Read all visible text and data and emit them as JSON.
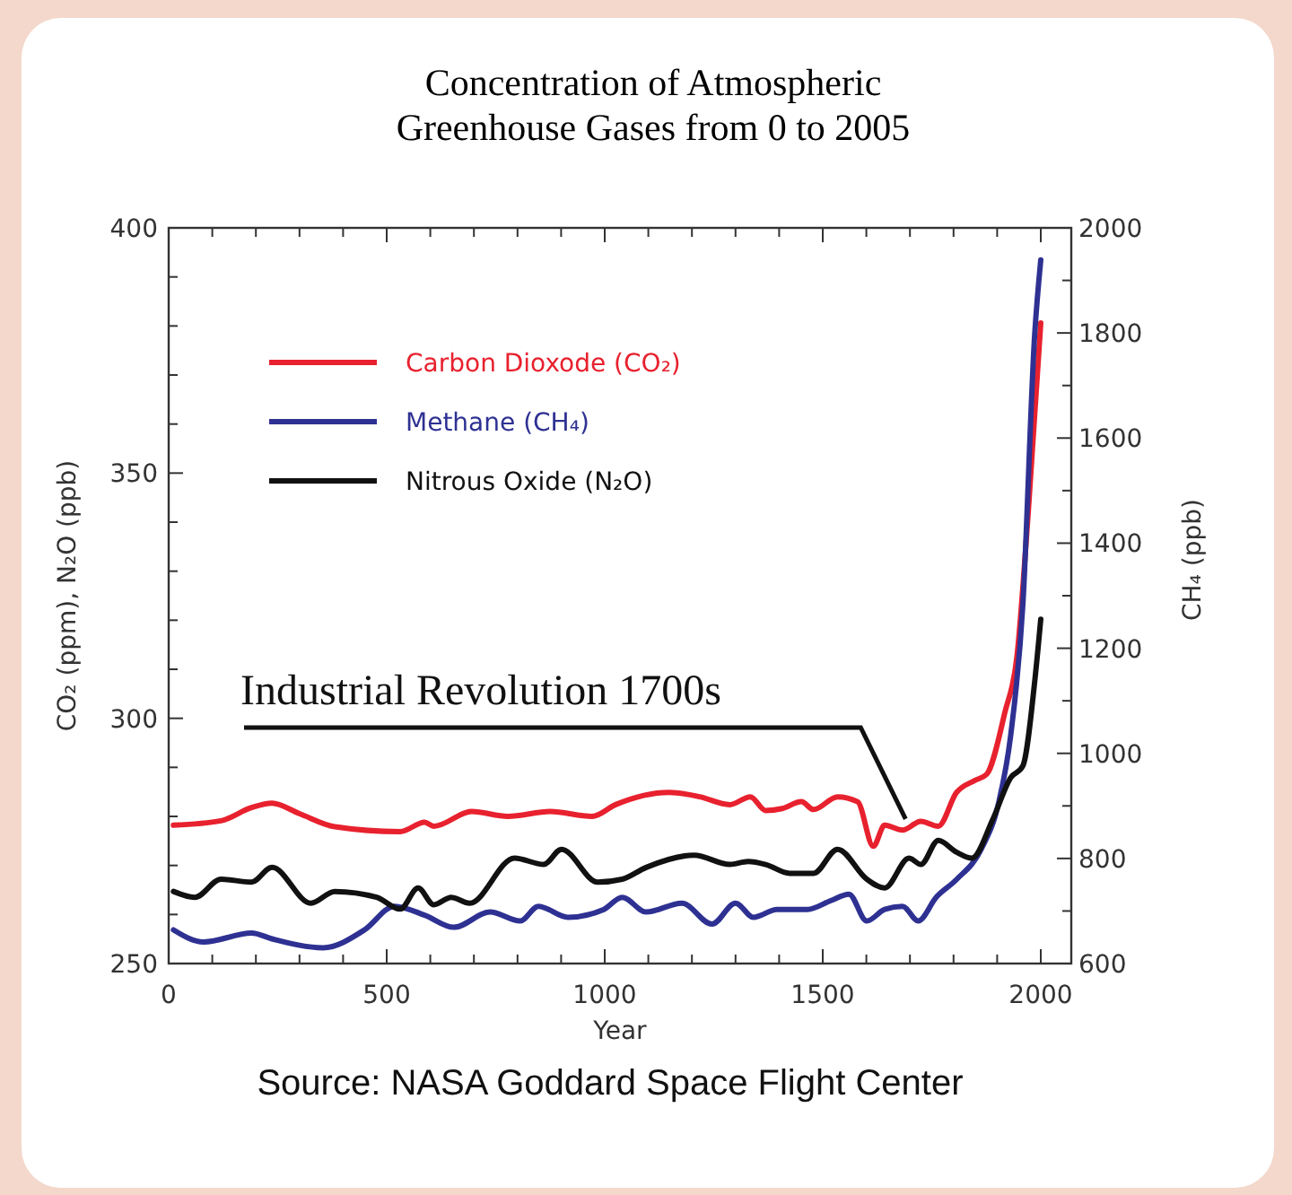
{
  "chart_data": {
    "type": "line",
    "title": "Concentration of Atmospheric\nGreenhouse Gases from 0 to 2005",
    "xlabel": "Year",
    "ylabel": "CO₂ (ppm), N₂O (ppb)",
    "y2label": "CH₄ (ppb)",
    "xlim": [
      0,
      2070
    ],
    "xticks": [
      0,
      {
        "value": 100,
        "label": null
      },
      {
        "value": 200,
        "label": null
      },
      {
        "value": 300,
        "label": null
      },
      {
        "value": 400,
        "label": null
      },
      500,
      {
        "value": 600,
        "label": null
      },
      {
        "value": 700,
        "label": null
      },
      {
        "value": 800,
        "label": null
      },
      {
        "value": 900,
        "label": null
      },
      1000,
      {
        "value": 1100,
        "label": null
      },
      {
        "value": 1200,
        "label": null
      },
      {
        "value": 1300,
        "label": null
      },
      {
        "value": 1400,
        "label": null
      },
      1500,
      {
        "value": 1600,
        "label": null
      },
      {
        "value": 1700,
        "label": null
      },
      {
        "value": 1800,
        "label": null
      },
      {
        "value": 1900,
        "label": null
      },
      2000
    ],
    "ylim": [
      250,
      400
    ],
    "yticks": [
      250,
      {
        "value": 260,
        "label": null
      },
      {
        "value": 270,
        "label": null
      },
      {
        "value": 280,
        "label": null
      },
      {
        "value": 290,
        "label": null
      },
      300,
      {
        "value": 310,
        "label": null
      },
      {
        "value": 320,
        "label": null
      },
      {
        "value": 330,
        "label": null
      },
      {
        "value": 340,
        "label": null
      },
      350,
      {
        "value": 360,
        "label": null
      },
      {
        "value": 370,
        "label": null
      },
      {
        "value": 380,
        "label": null
      },
      {
        "value": 390,
        "label": null
      },
      400
    ],
    "y2lim": [
      600,
      2000
    ],
    "y2ticks": [
      600,
      {
        "value": 700,
        "label": null
      },
      800,
      {
        "value": 900,
        "label": null
      },
      1000,
      {
        "value": 1100,
        "label": null
      },
      1200,
      {
        "value": 1300,
        "label": null
      },
      1400,
      {
        "value": 1500,
        "label": null
      },
      1600,
      {
        "value": 1700,
        "label": null
      },
      1800,
      {
        "value": 1900,
        "label": null
      },
      2000
    ],
    "legend": "top left",
    "series": [
      {
        "name": "Carbon Dioxode (CO₂)",
        "color": "#e8212e",
        "x": [
          11,
          120,
          190,
          237,
          299,
          381,
          531,
          587,
          608,
          695,
          778,
          875,
          971,
          1025,
          1148,
          1218,
          1287,
          1334,
          1369,
          1407,
          1451,
          1479,
          1534,
          1580,
          1616,
          1642,
          1683,
          1725,
          1765,
          1807,
          1848,
          1876,
          1918,
          1945,
          1971,
          2000
        ],
        "values": [
          278.2,
          279.1,
          281.8,
          282.7,
          280.6,
          277.9,
          276.9,
          278.8,
          278,
          281,
          280,
          281,
          280,
          282.4,
          284.9,
          284,
          282.4,
          284,
          281.2,
          281.6,
          283,
          281.4,
          284,
          283,
          273.9,
          278.2,
          277.2,
          279,
          278,
          284.9,
          287.3,
          288.6,
          301.3,
          312.3,
          341.6,
          380.6
        ]
      },
      {
        "name": "Methane (CH₄)",
        "color": "#2e3192",
        "axis": "y2",
        "x": [
          11,
          80,
          190,
          237,
          354,
          449,
          518,
          587,
          654,
          737,
          806,
          848,
          916,
          998,
          1040,
          1095,
          1177,
          1246,
          1300,
          1341,
          1395,
          1465,
          1519,
          1560,
          1601,
          1642,
          1683,
          1719,
          1760,
          1807,
          1863,
          1904,
          1931,
          1959,
          1986,
          2000
        ],
        "values": [
          664,
          641,
          658,
          647,
          630,
          664,
          709,
          692,
          669,
          698,
          681,
          709,
          688,
          703,
          726,
          698,
          715,
          675,
          715,
          688,
          703,
          703,
          720,
          732,
          681,
          703,
          709,
          681,
          726,
          760,
          817,
          908,
          1034,
          1284,
          1796,
          1939
        ]
      },
      {
        "name": "Nitrous Oxide (N₂O)",
        "color": "#111111",
        "x": [
          11,
          60,
          120,
          190,
          237,
          326,
          381,
          477,
          531,
          572,
          608,
          648,
          690,
          793,
          860,
          901,
          984,
          1040,
          1095,
          1205,
          1287,
          1329,
          1369,
          1424,
          1479,
          1534,
          1601,
          1642,
          1698,
          1725,
          1765,
          1807,
          1842,
          1890,
          1931,
          1959,
          1986,
          2000
        ],
        "values": [
          264.7,
          263.5,
          267.2,
          266.6,
          269.6,
          262.3,
          264.7,
          263.5,
          261.1,
          265.4,
          262,
          263.5,
          262.3,
          271.5,
          270.2,
          273.3,
          266.6,
          267.2,
          269.6,
          272.1,
          270.2,
          270.8,
          270.2,
          268.4,
          268.4,
          273.3,
          267.2,
          265.4,
          271.5,
          270.2,
          275.1,
          272.7,
          271.5,
          279.4,
          287.9,
          290.3,
          307.4,
          320.2
        ]
      }
    ],
    "annotations": [
      {
        "text": "Industrial Revolution 1700s",
        "x": 1690,
        "y": 278
      },
      "Source: NASA Goddard Space Flight Center"
    ]
  }
}
